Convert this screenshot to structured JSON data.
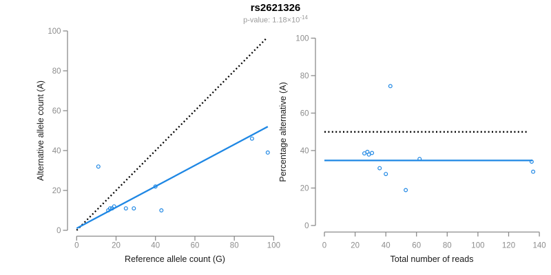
{
  "header": {
    "title": "rs2621326",
    "subtitle_prefix": "p-value: 1.18×10",
    "subtitle_exponent": "-14"
  },
  "colors": {
    "accent_blue": "#1E87E4",
    "dotted_black": "#000000",
    "axis_gray": "#8C8C8C",
    "tick_label_gray": "#8C8C8C",
    "axis_title_color": "#1A1A1A",
    "subtitle_gray": "#9B9B9B"
  },
  "chart_data": [
    {
      "type": "scatter",
      "name": "allele-counts-scatter",
      "xlabel": "Reference allele count (G)",
      "ylabel": "Alternative allele count (A)",
      "xlim": [
        0,
        100
      ],
      "ylim": [
        0,
        100
      ],
      "xticks": [
        0,
        20,
        40,
        60,
        80,
        100
      ],
      "yticks": [
        0,
        20,
        40,
        60,
        80,
        100
      ],
      "grid": false,
      "legend": null,
      "points": [
        {
          "x": 11,
          "y": 32
        },
        {
          "x": 16,
          "y": 10
        },
        {
          "x": 17,
          "y": 11
        },
        {
          "x": 18,
          "y": 11
        },
        {
          "x": 19,
          "y": 12
        },
        {
          "x": 25,
          "y": 11
        },
        {
          "x": 29,
          "y": 11
        },
        {
          "x": 40,
          "y": 22
        },
        {
          "x": 43,
          "y": 10
        },
        {
          "x": 89,
          "y": 46
        },
        {
          "x": 97,
          "y": 39
        }
      ],
      "lines": [
        {
          "name": "identity-line",
          "style": "dotted",
          "color": "#000000",
          "x1": 0,
          "y1": 0,
          "x2": 96,
          "y2": 96
        },
        {
          "name": "fitted-ratio-line",
          "style": "solid",
          "color": "#1E87E4",
          "x1": 0,
          "y1": 1,
          "x2": 97,
          "y2": 52
        }
      ]
    },
    {
      "type": "scatter",
      "name": "percentage-vs-reads-scatter",
      "xlabel": "Total number of reads",
      "ylabel": "Percentage alternative (A)",
      "xlim": [
        0,
        140
      ],
      "ylim": [
        0,
        100
      ],
      "xticks": [
        0,
        20,
        40,
        60,
        80,
        100,
        120,
        140
      ],
      "yticks": [
        0,
        20,
        40,
        60,
        80,
        100
      ],
      "grid": false,
      "legend": null,
      "points": [
        {
          "x": 43,
          "y": 74.4
        },
        {
          "x": 26,
          "y": 38.5
        },
        {
          "x": 28,
          "y": 39.3
        },
        {
          "x": 29,
          "y": 37.9
        },
        {
          "x": 31,
          "y": 38.7
        },
        {
          "x": 36,
          "y": 30.6
        },
        {
          "x": 40,
          "y": 27.5
        },
        {
          "x": 62,
          "y": 35.5
        },
        {
          "x": 53,
          "y": 18.9
        },
        {
          "x": 135,
          "y": 34.1
        },
        {
          "x": 136,
          "y": 28.7
        }
      ],
      "lines": [
        {
          "name": "fifty-percent-line",
          "style": "dotted",
          "color": "#000000",
          "x1": 0,
          "y1": 50,
          "x2": 132,
          "y2": 50
        },
        {
          "name": "mean-percentage-line",
          "style": "solid",
          "color": "#1E87E4",
          "x1": 0,
          "y1": 34.7,
          "x2": 135.5,
          "y2": 34.7
        }
      ]
    }
  ]
}
